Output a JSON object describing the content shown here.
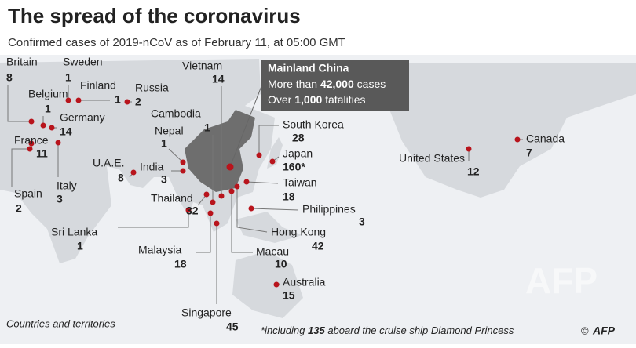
{
  "header": {
    "title": "The spread of the coronavirus",
    "subtitle": "Confirmed cases of 2019-nCoV as of February 11, at 05:00 GMT"
  },
  "callout": {
    "title": "Mainland China",
    "line1": [
      "More than",
      "42,000",
      "cases"
    ],
    "line2": [
      "Over",
      "1,000",
      "fatalities"
    ]
  },
  "locations": [
    {
      "name": "Britain",
      "cases": 8
    },
    {
      "name": "Sweden",
      "cases": 1
    },
    {
      "name": "Finland",
      "cases": 1
    },
    {
      "name": "Russia",
      "cases": 2
    },
    {
      "name": "Belgium",
      "cases": 1
    },
    {
      "name": "Germany",
      "cases": 14
    },
    {
      "name": "France",
      "cases": 11
    },
    {
      "name": "Spain",
      "cases": 2
    },
    {
      "name": "Italy",
      "cases": 3
    },
    {
      "name": "U.A.E.",
      "cases": 8
    },
    {
      "name": "India",
      "cases": 3
    },
    {
      "name": "Nepal",
      "cases": 1
    },
    {
      "name": "Sri Lanka",
      "cases": 1
    },
    {
      "name": "Thailand",
      "cases": 32
    },
    {
      "name": "Cambodia",
      "cases": 1
    },
    {
      "name": "Vietnam",
      "cases": 14
    },
    {
      "name": "Malaysia",
      "cases": 18
    },
    {
      "name": "Singapore",
      "cases": 45
    },
    {
      "name": "Hong Kong",
      "cases": 42
    },
    {
      "name": "Macau",
      "cases": 10
    },
    {
      "name": "Taiwan",
      "cases": 18
    },
    {
      "name": "Philippines",
      "cases": 3
    },
    {
      "name": "South Korea",
      "cases": 28
    },
    {
      "name": "Japan",
      "cases": "160*"
    },
    {
      "name": "Australia",
      "cases": 15
    },
    {
      "name": "United States",
      "cases": 12
    },
    {
      "name": "Canada",
      "cases": 7
    }
  ],
  "legend": "Countries and territories",
  "footnote": [
    "*including",
    "135",
    "aboard the cruise ship Diamond Princess"
  ],
  "credit": {
    "symbol": "©",
    "agency": "AFP"
  }
}
